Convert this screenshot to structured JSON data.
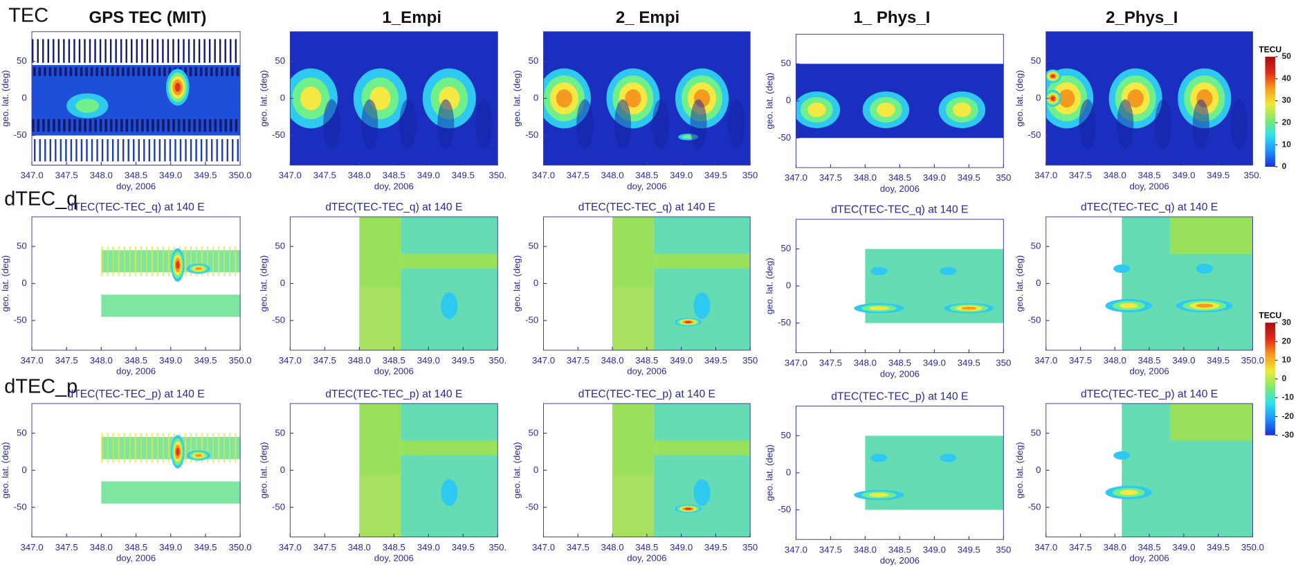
{
  "row_labels": [
    "TEC",
    "dTEC_q",
    "dTEC_p"
  ],
  "column_titles": [
    "GPS TEC (MIT)",
    "1_Empi",
    "2_ Empi",
    "1_ Phys_I",
    "2_Phys_I"
  ],
  "chart_data": [
    {
      "type": "heatmap",
      "x_label": "doy, 2006",
      "y_label": "geo. lat. (deg)",
      "xlim": [
        347,
        350
      ],
      "ylim": [
        -90,
        90
      ],
      "xticks": [
        {
          "value": 347,
          "label": "347.0"
        },
        {
          "value": 347.5,
          "label": "347.5"
        },
        {
          "value": 348,
          "label": "348.0"
        },
        {
          "value": 348.5,
          "label": "348.5"
        },
        {
          "value": 349,
          "label": "349.0"
        },
        {
          "value": 349.5,
          "label": "349.5"
        },
        {
          "value": 350,
          "label": "350.0"
        }
      ],
      "yticks": [
        -50,
        0,
        50
      ]
    },
    {
      "type": "heatmap",
      "x_label": "doy, 2006",
      "y_label": "geo. lat. (deg)",
      "xlim": [
        347,
        350
      ],
      "ylim": [
        -90,
        90
      ],
      "xticks": [
        {
          "value": 347,
          "label": "347.0"
        },
        {
          "value": 347.5,
          "label": "347.5"
        },
        {
          "value": 348,
          "label": "348.0"
        },
        {
          "value": 348.5,
          "label": "348.5"
        },
        {
          "value": 349,
          "label": "349.0"
        },
        {
          "value": 349.5,
          "label": "349.5"
        },
        {
          "value": 350,
          "label": "350."
        }
      ],
      "yticks": [
        -50,
        0,
        50
      ]
    },
    {
      "type": "heatmap",
      "x_label": "doy, 2006",
      "y_label": "geo. lat. (deg)",
      "xlim": [
        347,
        350
      ],
      "ylim": [
        -90,
        90
      ],
      "xticks": [
        {
          "value": 347,
          "label": "347.0"
        },
        {
          "value": 347.5,
          "label": "347.5"
        },
        {
          "value": 348,
          "label": "348.0"
        },
        {
          "value": 348.5,
          "label": "348.5"
        },
        {
          "value": 349,
          "label": "349.0"
        },
        {
          "value": 349.5,
          "label": "349.5"
        },
        {
          "value": 350,
          "label": "350"
        }
      ],
      "yticks": [
        -50,
        0,
        50
      ]
    },
    {
      "type": "heatmap",
      "x_label": "doy, 2006",
      "y_label": "geo. lat. (deg)",
      "xlim": [
        347,
        350
      ],
      "ylim": [
        -90,
        90
      ],
      "xticks": [
        {
          "value": 347,
          "label": "347.0"
        },
        {
          "value": 347.5,
          "label": "347.5"
        },
        {
          "value": 348,
          "label": "348.0"
        },
        {
          "value": 348.5,
          "label": "348.5"
        },
        {
          "value": 349,
          "label": "349.0"
        },
        {
          "value": 349.5,
          "label": "349.5"
        },
        {
          "value": 350,
          "label": "350"
        }
      ],
      "yticks": [
        -50,
        0,
        50
      ]
    },
    {
      "type": "heatmap",
      "x_label": "doy, 2006",
      "y_label": "geo. lat. (deg)",
      "xlim": [
        347,
        350
      ],
      "ylim": [
        -90,
        90
      ],
      "xticks": [
        {
          "value": 347,
          "label": "347.0"
        },
        {
          "value": 347.5,
          "label": "347.5"
        },
        {
          "value": 348,
          "label": "348.0"
        },
        {
          "value": 348.5,
          "label": "348.5"
        },
        {
          "value": 349,
          "label": "349.0"
        },
        {
          "value": 349.5,
          "label": "349.5"
        },
        {
          "value": 350,
          "label": "350."
        }
      ],
      "yticks": [
        -50,
        0,
        50
      ]
    },
    {
      "type": "heatmap",
      "title": "dTEC(TEC-TEC_q) at 140 E",
      "x_label": "doy, 2006",
      "y_label": "geo. lat. (deg)",
      "xlim": [
        347,
        350
      ],
      "ylim": [
        -90,
        90
      ],
      "xticks": [
        {
          "value": 347,
          "label": "347.0"
        },
        {
          "value": 347.5,
          "label": "347.5"
        },
        {
          "value": 348,
          "label": "348.0"
        },
        {
          "value": 348.5,
          "label": "348.5"
        },
        {
          "value": 349,
          "label": "349.0"
        },
        {
          "value": 349.5,
          "label": "349.5"
        },
        {
          "value": 350,
          "label": "350.0"
        }
      ],
      "yticks": [
        -50,
        0,
        50
      ]
    },
    {
      "type": "heatmap",
      "title": "dTEC(TEC-TEC_q) at 140 E",
      "x_label": "doy, 2006",
      "y_label": "geo. lat. (deg)",
      "xlim": [
        347,
        350
      ],
      "ylim": [
        -90,
        90
      ],
      "xticks": [
        {
          "value": 347,
          "label": "347.0"
        },
        {
          "value": 347.5,
          "label": "347.5"
        },
        {
          "value": 348,
          "label": "348.0"
        },
        {
          "value": 348.5,
          "label": "348.5"
        },
        {
          "value": 349,
          "label": "349.0"
        },
        {
          "value": 349.5,
          "label": "349.5"
        },
        {
          "value": 350,
          "label": "350."
        }
      ],
      "yticks": [
        -50,
        0,
        50
      ]
    },
    {
      "type": "heatmap",
      "title": "dTEC(TEC-TEC_q) at 140 E",
      "x_label": "doy, 2006",
      "y_label": "geo. lat. (deg)",
      "xlim": [
        347,
        350
      ],
      "ylim": [
        -90,
        90
      ],
      "xticks": [
        {
          "value": 347,
          "label": "347.0"
        },
        {
          "value": 347.5,
          "label": "347.5"
        },
        {
          "value": 348,
          "label": "348.0"
        },
        {
          "value": 348.5,
          "label": "348.5"
        },
        {
          "value": 349,
          "label": "349.0"
        },
        {
          "value": 349.5,
          "label": "349.5"
        },
        {
          "value": 350,
          "label": "350"
        }
      ],
      "yticks": [
        -50,
        0,
        50
      ]
    },
    {
      "type": "heatmap",
      "title": "dTEC(TEC-TEC_q) at 140 E",
      "x_label": "doy, 2006",
      "y_label": "geo. lat. (deg)",
      "xlim": [
        347,
        350
      ],
      "ylim": [
        -90,
        90
      ],
      "xticks": [
        {
          "value": 347,
          "label": "347.0"
        },
        {
          "value": 347.5,
          "label": "347.5"
        },
        {
          "value": 348,
          "label": "348.0"
        },
        {
          "value": 348.5,
          "label": "348.5"
        },
        {
          "value": 349,
          "label": "349.0"
        },
        {
          "value": 349.5,
          "label": "349.5"
        },
        {
          "value": 350,
          "label": "350"
        }
      ],
      "yticks": [
        -50,
        0,
        50
      ]
    },
    {
      "type": "heatmap",
      "title": "dTEC(TEC-TEC_q) at 140 E",
      "x_label": "doy, 2006",
      "y_label": "geo. lat. (deg)",
      "xlim": [
        347,
        350
      ],
      "ylim": [
        -90,
        90
      ],
      "xticks": [
        {
          "value": 347,
          "label": "347.0"
        },
        {
          "value": 347.5,
          "label": "347.5"
        },
        {
          "value": 348,
          "label": "348.0"
        },
        {
          "value": 348.5,
          "label": "348.5"
        },
        {
          "value": 349,
          "label": "349.0"
        },
        {
          "value": 349.5,
          "label": "349.5"
        },
        {
          "value": 350,
          "label": "350.0"
        }
      ],
      "yticks": [
        -50,
        0,
        50
      ]
    },
    {
      "type": "heatmap",
      "title": "dTEC(TEC-TEC_p) at 140 E",
      "x_label": "doy, 2006",
      "y_label": "geo. lat. (deg)",
      "xlim": [
        347,
        350
      ],
      "ylim": [
        -90,
        90
      ],
      "xticks": [
        {
          "value": 347,
          "label": "347.0"
        },
        {
          "value": 347.5,
          "label": "347.5"
        },
        {
          "value": 348,
          "label": "348.0"
        },
        {
          "value": 348.5,
          "label": "348.5"
        },
        {
          "value": 349,
          "label": "349.0"
        },
        {
          "value": 349.5,
          "label": "349.5"
        },
        {
          "value": 350,
          "label": "350.0"
        }
      ],
      "yticks": [
        -50,
        0,
        50
      ]
    },
    {
      "type": "heatmap",
      "title": "dTEC(TEC-TEC_p) at 140 E",
      "x_label": "doy, 2006",
      "y_label": "geo. lat. (deg)",
      "xlim": [
        347,
        350
      ],
      "ylim": [
        -90,
        90
      ],
      "xticks": [
        {
          "value": 347,
          "label": "347.0"
        },
        {
          "value": 347.5,
          "label": "347.5"
        },
        {
          "value": 348,
          "label": "348.0"
        },
        {
          "value": 348.5,
          "label": "348.5"
        },
        {
          "value": 349,
          "label": "349.0"
        },
        {
          "value": 349.5,
          "label": "349.5"
        },
        {
          "value": 350,
          "label": "350."
        }
      ],
      "yticks": [
        -50,
        0,
        50
      ]
    },
    {
      "type": "heatmap",
      "title": "dTEC(TEC-TEC_p) at 140 E",
      "x_label": "doy, 2006",
      "y_label": "geo. lat. (deg)",
      "xlim": [
        347,
        350
      ],
      "ylim": [
        -90,
        90
      ],
      "xticks": [
        {
          "value": 347,
          "label": "347.0"
        },
        {
          "value": 347.5,
          "label": "347.5"
        },
        {
          "value": 348,
          "label": "348.0"
        },
        {
          "value": 348.5,
          "label": "348.5"
        },
        {
          "value": 349,
          "label": "349.0"
        },
        {
          "value": 349.5,
          "label": "349.5"
        },
        {
          "value": 350,
          "label": "350"
        }
      ],
      "yticks": [
        -50,
        0,
        50
      ]
    },
    {
      "type": "heatmap",
      "title": "dTEC(TEC-TEC_p) at 140 E",
      "x_label": "doy, 2006",
      "y_label": "geo. lat. (deg)",
      "xlim": [
        347,
        350
      ],
      "ylim": [
        -90,
        90
      ],
      "xticks": [
        {
          "value": 347,
          "label": "347.0"
        },
        {
          "value": 347.5,
          "label": "347.5"
        },
        {
          "value": 348,
          "label": "348.0"
        },
        {
          "value": 348.5,
          "label": "348.5"
        },
        {
          "value": 349,
          "label": "349.0"
        },
        {
          "value": 349.5,
          "label": "349.5"
        },
        {
          "value": 350,
          "label": "350"
        }
      ],
      "yticks": [
        -50,
        0,
        50
      ]
    },
    {
      "type": "heatmap",
      "title": "dTEC(TEC-TEC_p) at 140 E",
      "x_label": "doy, 2006",
      "y_label": "geo. lat. (deg)",
      "xlim": [
        347,
        350
      ],
      "ylim": [
        -90,
        90
      ],
      "xticks": [
        {
          "value": 347,
          "label": "347.0"
        },
        {
          "value": 347.5,
          "label": "347.5"
        },
        {
          "value": 348,
          "label": "348.0"
        },
        {
          "value": 348.5,
          "label": "348.5"
        },
        {
          "value": 349,
          "label": "349.0"
        },
        {
          "value": 349.5,
          "label": "349.5"
        },
        {
          "value": 350,
          "label": "350.0"
        }
      ],
      "yticks": [
        -50,
        0,
        50
      ]
    },
    {
      "type": "colorbar",
      "title": "TECU",
      "ylim": [
        0,
        50
      ],
      "yticks": [
        0,
        10,
        20,
        30,
        40,
        50
      ],
      "colors": [
        "#1a2fd8",
        "#1e90ff",
        "#30e0e8",
        "#80e870",
        "#f0e838",
        "#f59a20",
        "#e02818",
        "#a01010"
      ]
    },
    {
      "type": "colorbar",
      "title": "TECU",
      "ylim": [
        -30,
        30
      ],
      "yticks": [
        -30,
        -20,
        -10,
        0,
        10,
        20,
        30
      ],
      "colors": [
        "#1a2fd8",
        "#1e90ff",
        "#30e0e8",
        "#80e870",
        "#f0e838",
        "#f59a20",
        "#e02818",
        "#a01010"
      ]
    }
  ]
}
